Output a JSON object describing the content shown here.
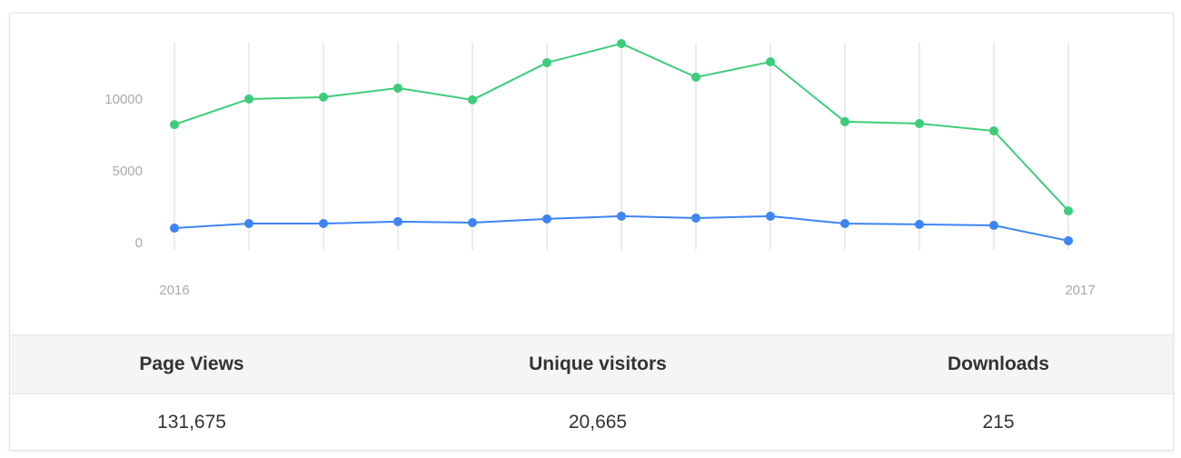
{
  "chart_data": {
    "type": "line",
    "categories": [
      "2016",
      null,
      null,
      null,
      null,
      null,
      null,
      null,
      null,
      null,
      null,
      null,
      "2017"
    ],
    "series": [
      {
        "color": "#3dcc7a",
        "values": [
          8600,
          10380,
          10510,
          11140,
          10320,
          12910,
          14240,
          11900,
          12970,
          8800,
          8670,
          8160,
          2590
        ]
      },
      {
        "color": "#3d85f5",
        "values": [
          1390,
          1710,
          1710,
          1840,
          1770,
          2030,
          2220,
          2090,
          2220,
          1710,
          1650,
          1580,
          510
        ]
      }
    ],
    "ylim": [
      0,
      14300
    ],
    "yticks": [
      0,
      5000,
      10000
    ],
    "grid": "x"
  },
  "stats": {
    "headers": [
      "Page Views",
      "Unique visitors",
      "Downloads"
    ],
    "values": [
      "131,675",
      "20,665",
      "215"
    ]
  }
}
